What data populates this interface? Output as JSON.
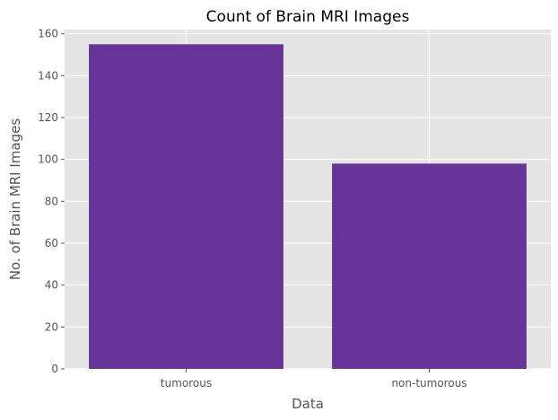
{
  "chart_data": {
    "type": "bar",
    "title": "Count of Brain MRI Images",
    "xlabel": "Data",
    "ylabel": "No. of Brain MRI Images",
    "categories": [
      "tumorous",
      "non-tumorous"
    ],
    "values": [
      155,
      98
    ],
    "ylim": [
      0,
      162
    ],
    "yticks": [
      0,
      20,
      40,
      60,
      80,
      100,
      120,
      140,
      160
    ],
    "grid": true,
    "bar_color": "#663399",
    "plot_background": "#e5e5e5",
    "grid_color": "#ffffff"
  }
}
